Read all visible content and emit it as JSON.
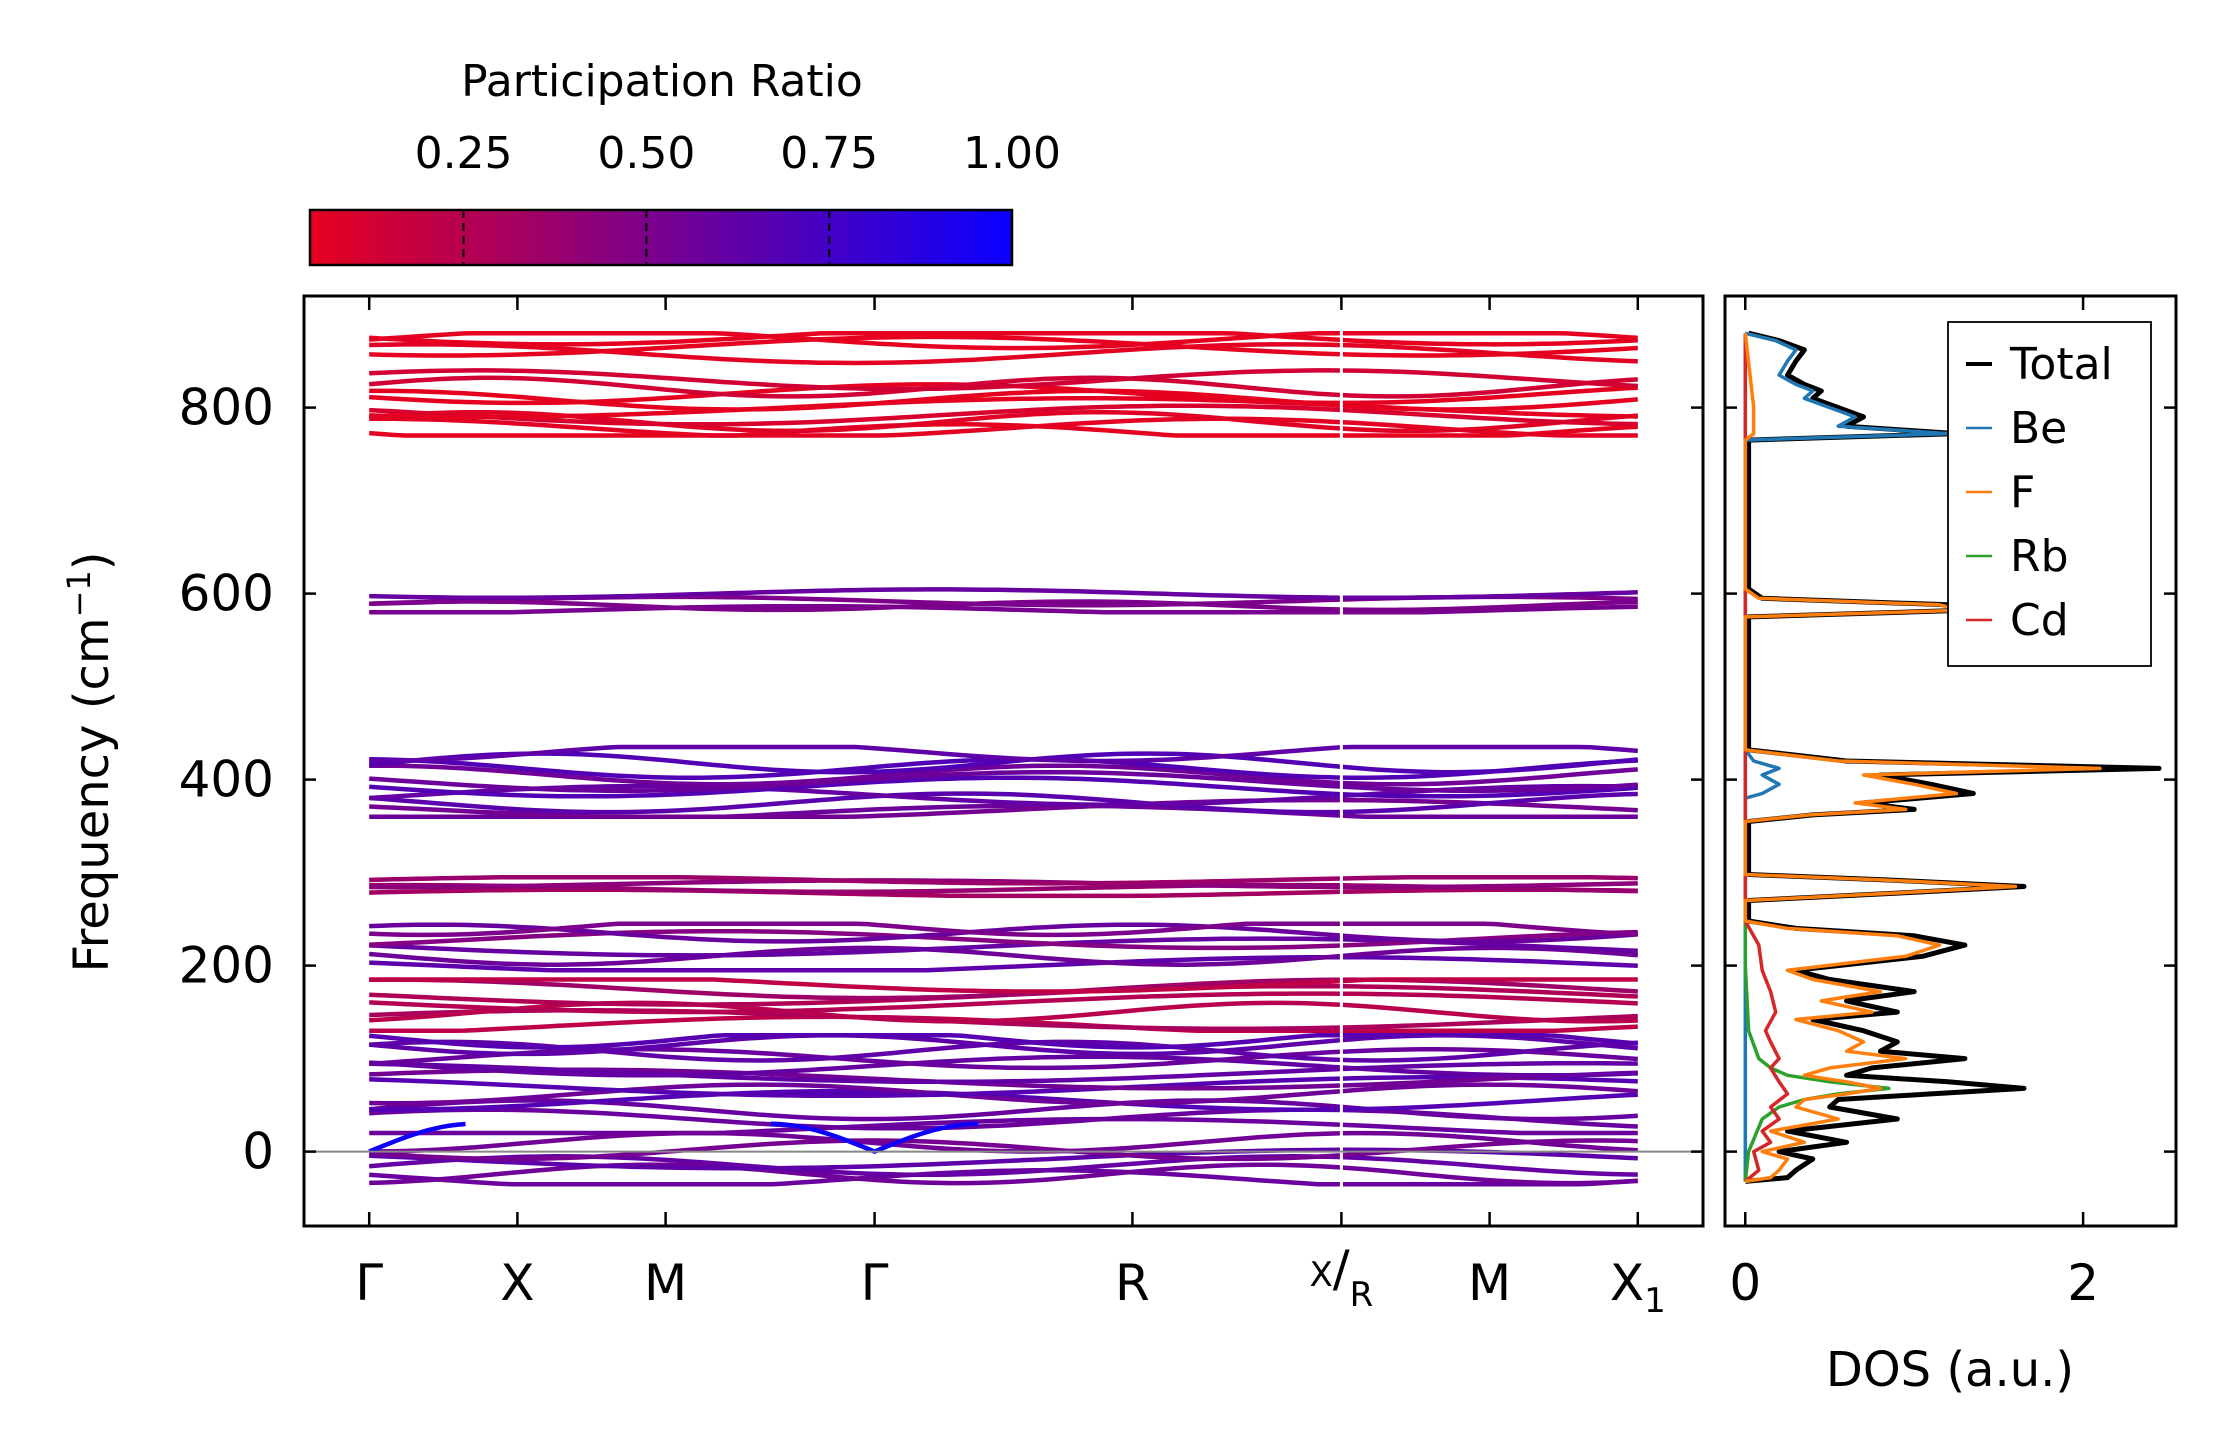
{
  "chart_data": [
    {
      "type": "line",
      "subtype": "phonon_band_structure",
      "ylabel": "Frequency (cm",
      "ylabel_unit_sup": "−1",
      "ylabel_close": ")",
      "ylim": [
        -80,
        920
      ],
      "yticks": [
        0,
        200,
        400,
        600,
        800
      ],
      "xticks": [
        {
          "label": "Γ",
          "x": 0.0
        },
        {
          "label": "X",
          "x": 1.0
        },
        {
          "label": "M",
          "x": 2.0
        },
        {
          "label": "Γ",
          "x": 3.41
        },
        {
          "label": "R",
          "x": 5.15
        },
        {
          "label": "X",
          "label_sub": "R",
          "x": 6.56
        },
        {
          "label": "M",
          "x": 7.56
        },
        {
          "label": "X",
          "label_sub": "1",
          "x": 8.56
        }
      ],
      "xlim": [
        -0.44,
        9.0
      ],
      "segment_break_x": 6.56,
      "zero_line": 0,
      "colorbar": {
        "label": "Participation Ratio",
        "min": 0.04,
        "max": 1.0,
        "ticks": [
          "0.25",
          "0.50",
          "0.75",
          "1.00"
        ],
        "tick_values": [
          0.25,
          0.5,
          0.75,
          1.0
        ],
        "color_low": "#e6001f",
        "color_high": "#0a00ff"
      },
      "band_groups": [
        {
          "range": [
            770,
            880
          ],
          "participation": 0.05,
          "bands": [
            772,
            778,
            785,
            792,
            800,
            808,
            815,
            822,
            830,
            858,
            866,
            874,
            878
          ]
        },
        {
          "range": [
            580,
            605
          ],
          "participation": 0.55,
          "bands": [
            582,
            587,
            592,
            600
          ]
        },
        {
          "range": [
            360,
            435
          ],
          "participation": 0.62,
          "bands": [
            362,
            368,
            375,
            383,
            392,
            398,
            405,
            412,
            418,
            430
          ]
        },
        {
          "range": [
            275,
            295
          ],
          "participation": 0.35,
          "bands": [
            278,
            283,
            288,
            292
          ]
        },
        {
          "range": [
            195,
            245
          ],
          "participation": 0.55,
          "bands": [
            200,
            210,
            220,
            228,
            235,
            242
          ]
        },
        {
          "range": [
            130,
            185
          ],
          "participation": 0.3,
          "bands": [
            135,
            142,
            150,
            160,
            168,
            175,
            182
          ]
        },
        {
          "range": [
            20,
            125
          ],
          "participation": 0.6,
          "bands": [
            25,
            35,
            45,
            55,
            62,
            70,
            78,
            85,
            92,
            100,
            108,
            115,
            122
          ]
        },
        {
          "range": [
            -35,
            20
          ],
          "participation": 0.55,
          "bands": [
            -30,
            -24,
            -15,
            -8,
            2,
            10
          ]
        }
      ]
    },
    {
      "type": "line",
      "subtype": "density_of_states",
      "xlabel": "DOS (a.u.)",
      "xlim": [
        -0.12,
        2.55
      ],
      "xticks": [
        0,
        2
      ],
      "ylim": [
        -80,
        920
      ],
      "legend": {
        "position": "top-right",
        "entries": [
          "Total",
          "Be",
          "F",
          "Rb",
          "Cd"
        ]
      },
      "series": [
        {
          "name": "Total",
          "color": "#000000",
          "points": [
            [
              -32,
              0
            ],
            [
              -28,
              0.25
            ],
            [
              -20,
              0.3
            ],
            [
              -8,
              0.4
            ],
            [
              0,
              0.2
            ],
            [
              10,
              0.6
            ],
            [
              22,
              0.25
            ],
            [
              35,
              0.9
            ],
            [
              48,
              0.5
            ],
            [
              56,
              0.55
            ],
            [
              62,
              1.1
            ],
            [
              68,
              1.65
            ],
            [
              75,
              1.2
            ],
            [
              82,
              0.6
            ],
            [
              90,
              0.75
            ],
            [
              100,
              1.3
            ],
            [
              108,
              0.8
            ],
            [
              118,
              0.9
            ],
            [
              130,
              0.7
            ],
            [
              142,
              0.4
            ],
            [
              150,
              0.9
            ],
            [
              162,
              0.6
            ],
            [
              172,
              1.0
            ],
            [
              185,
              0.5
            ],
            [
              195,
              0.3
            ],
            [
              210,
              1.05
            ],
            [
              222,
              1.3
            ],
            [
              232,
              1.0
            ],
            [
              240,
              0.3
            ],
            [
              248,
              0.02
            ],
            [
              270,
              0.02
            ],
            [
              278,
              0.9
            ],
            [
              285,
              1.65
            ],
            [
              292,
              0.85
            ],
            [
              298,
              0.02
            ],
            [
              355,
              0.02
            ],
            [
              362,
              0.4
            ],
            [
              368,
              1.0
            ],
            [
              375,
              0.7
            ],
            [
              385,
              1.35
            ],
            [
              395,
              1.1
            ],
            [
              405,
              0.8
            ],
            [
              412,
              2.45
            ],
            [
              420,
              0.6
            ],
            [
              432,
              0.02
            ],
            [
              575,
              0.02
            ],
            [
              582,
              1.3
            ],
            [
              588,
              1.2
            ],
            [
              595,
              0.1
            ],
            [
              605,
              0.02
            ],
            [
              765,
              0.02
            ],
            [
              772,
              1.25
            ],
            [
              780,
              0.6
            ],
            [
              790,
              0.7
            ],
            [
              800,
              0.55
            ],
            [
              810,
              0.4
            ],
            [
              818,
              0.45
            ],
            [
              825,
              0.35
            ],
            [
              835,
              0.25
            ],
            [
              850,
              0.3
            ],
            [
              862,
              0.35
            ],
            [
              872,
              0.2
            ],
            [
              880,
              0.02
            ]
          ]
        },
        {
          "name": "Be",
          "color": "#1f77b4",
          "points": [
            [
              -32,
              0
            ],
            [
              380,
              0
            ],
            [
              385,
              0.1
            ],
            [
              395,
              0.2
            ],
            [
              405,
              0.1
            ],
            [
              412,
              0.2
            ],
            [
              420,
              0.05
            ],
            [
              432,
              0
            ],
            [
              765,
              0
            ],
            [
              772,
              1.2
            ],
            [
              780,
              0.55
            ],
            [
              790,
              0.65
            ],
            [
              800,
              0.5
            ],
            [
              810,
              0.35
            ],
            [
              818,
              0.4
            ],
            [
              825,
              0.3
            ],
            [
              835,
              0.2
            ],
            [
              850,
              0.25
            ],
            [
              862,
              0.3
            ],
            [
              872,
              0.18
            ],
            [
              880,
              0
            ]
          ]
        },
        {
          "name": "F",
          "color": "#ff7f0e",
          "points": [
            [
              -32,
              0
            ],
            [
              -28,
              0.15
            ],
            [
              -20,
              0.2
            ],
            [
              -8,
              0.25
            ],
            [
              0,
              0.1
            ],
            [
              10,
              0.35
            ],
            [
              22,
              0.15
            ],
            [
              35,
              0.55
            ],
            [
              48,
              0.3
            ],
            [
              56,
              0.35
            ],
            [
              62,
              0.6
            ],
            [
              68,
              0.8
            ],
            [
              75,
              0.6
            ],
            [
              82,
              0.35
            ],
            [
              90,
              0.5
            ],
            [
              100,
              0.95
            ],
            [
              108,
              0.6
            ],
            [
              118,
              0.7
            ],
            [
              130,
              0.55
            ],
            [
              142,
              0.3
            ],
            [
              150,
              0.75
            ],
            [
              162,
              0.45
            ],
            [
              172,
              0.8
            ],
            [
              185,
              0.4
            ],
            [
              195,
              0.25
            ],
            [
              210,
              0.95
            ],
            [
              222,
              1.15
            ],
            [
              232,
              0.9
            ],
            [
              240,
              0.25
            ],
            [
              248,
              0
            ],
            [
              270,
              0
            ],
            [
              278,
              0.88
            ],
            [
              285,
              1.6
            ],
            [
              292,
              0.82
            ],
            [
              298,
              0
            ],
            [
              355,
              0
            ],
            [
              362,
              0.38
            ],
            [
              368,
              0.95
            ],
            [
              375,
              0.65
            ],
            [
              385,
              1.25
            ],
            [
              395,
              1.0
            ],
            [
              405,
              0.7
            ],
            [
              412,
              2.1
            ],
            [
              420,
              0.55
            ],
            [
              432,
              0
            ],
            [
              575,
              0
            ],
            [
              582,
              1.28
            ],
            [
              588,
              1.15
            ],
            [
              595,
              0.08
            ],
            [
              605,
              0
            ],
            [
              765,
              0
            ],
            [
              772,
              0.05
            ],
            [
              800,
              0.05
            ],
            [
              880,
              0
            ]
          ]
        },
        {
          "name": "Rb",
          "color": "#2ca02c",
          "points": [
            [
              -32,
              0
            ],
            [
              0,
              0.02
            ],
            [
              35,
              0.1
            ],
            [
              48,
              0.2
            ],
            [
              56,
              0.35
            ],
            [
              62,
              0.55
            ],
            [
              68,
              0.85
            ],
            [
              75,
              0.5
            ],
            [
              82,
              0.25
            ],
            [
              90,
              0.15
            ],
            [
              100,
              0.08
            ],
            [
              130,
              0.02
            ],
            [
              200,
              0
            ],
            [
              880,
              0
            ]
          ]
        },
        {
          "name": "Cd",
          "color": "#d62728",
          "points": [
            [
              -32,
              0
            ],
            [
              -20,
              0.08
            ],
            [
              0,
              0.05
            ],
            [
              10,
              0.15
            ],
            [
              22,
              0.1
            ],
            [
              35,
              0.2
            ],
            [
              48,
              0.15
            ],
            [
              62,
              0.25
            ],
            [
              75,
              0.2
            ],
            [
              90,
              0.15
            ],
            [
              100,
              0.2
            ],
            [
              118,
              0.15
            ],
            [
              130,
              0.12
            ],
            [
              150,
              0.18
            ],
            [
              172,
              0.15
            ],
            [
              195,
              0.1
            ],
            [
              222,
              0.08
            ],
            [
              248,
              0
            ],
            [
              880,
              0
            ]
          ]
        }
      ]
    }
  ]
}
